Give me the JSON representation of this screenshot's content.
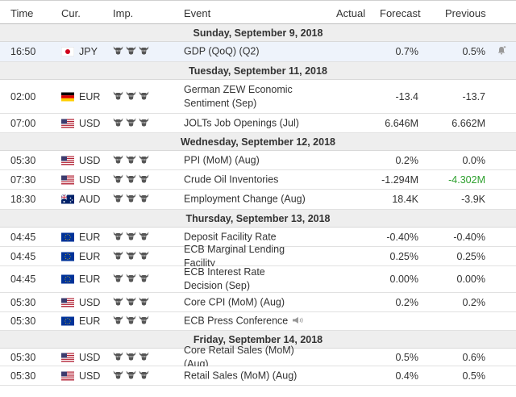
{
  "header": {
    "time": "Time",
    "currency": "Cur.",
    "importance": "Imp.",
    "event": "Event",
    "actual": "Actual",
    "forecast": "Forecast",
    "previous": "Previous"
  },
  "colors": {
    "highlight_row": "#eef3fb",
    "date_row": "#eeeeee",
    "positive": "#2c9f2c"
  },
  "days": [
    {
      "date": "Sunday, September 9, 2018",
      "events": [
        {
          "time": "16:50",
          "flag": "jp-flag-icon",
          "currency": "JPY",
          "event": "GDP (QoQ) (Q2)",
          "actual": "",
          "forecast": "0.7%",
          "previous": "0.5%",
          "bell": "bell-add-icon"
        }
      ]
    },
    {
      "date": "Tuesday, September 11, 2018",
      "events": [
        {
          "time": "02:00",
          "flag": "de-flag-icon",
          "currency": "EUR",
          "event": "German ZEW Economic Sentiment (Sep)",
          "actual": "",
          "forecast": "-13.4",
          "previous": "-13.7"
        },
        {
          "time": "07:00",
          "flag": "us-flag-icon",
          "currency": "USD",
          "event": "JOLTs Job Openings (Jul)",
          "actual": "",
          "forecast": "6.646M",
          "previous": "6.662M"
        }
      ]
    },
    {
      "date": "Wednesday, September 12, 2018",
      "events": [
        {
          "time": "05:30",
          "flag": "us-flag-icon",
          "currency": "USD",
          "event": "PPI (MoM) (Aug)",
          "actual": "",
          "forecast": "0.2%",
          "previous": "0.0%"
        },
        {
          "time": "07:30",
          "flag": "us-flag-icon",
          "currency": "USD",
          "event": "Crude Oil Inventories",
          "actual": "",
          "forecast": "-1.294M",
          "previous": "-4.302M",
          "previous_color": "green"
        },
        {
          "time": "18:30",
          "flag": "au-flag-icon",
          "currency": "AUD",
          "event": "Employment Change (Aug)",
          "actual": "",
          "forecast": "18.4K",
          "previous": "-3.9K"
        }
      ]
    },
    {
      "date": "Thursday, September 13, 2018",
      "events": [
        {
          "time": "04:45",
          "flag": "eu-flag-icon",
          "currency": "EUR",
          "event": "Deposit Facility Rate",
          "actual": "",
          "forecast": "-0.40%",
          "previous": "-0.40%"
        },
        {
          "time": "04:45",
          "flag": "eu-flag-icon",
          "currency": "EUR",
          "event": "ECB Marginal Lending Facility",
          "actual": "",
          "forecast": "0.25%",
          "previous": "0.25%"
        },
        {
          "time": "04:45",
          "flag": "eu-flag-icon",
          "currency": "EUR",
          "event": "ECB Interest Rate Decision (Sep)",
          "actual": "",
          "forecast": "0.00%",
          "previous": "0.00%"
        },
        {
          "time": "05:30",
          "flag": "us-flag-icon",
          "currency": "USD",
          "event": "Core CPI (MoM) (Aug)",
          "actual": "",
          "forecast": "0.2%",
          "previous": "0.2%"
        },
        {
          "time": "05:30",
          "flag": "eu-flag-icon",
          "currency": "EUR",
          "event": "ECB Press Conference",
          "actual": "",
          "forecast": "",
          "previous": "",
          "speaker": "speaker-icon"
        }
      ]
    },
    {
      "date": "Friday, September 14, 2018",
      "events": [
        {
          "time": "05:30",
          "flag": "us-flag-icon",
          "currency": "USD",
          "event": "Core Retail Sales (MoM) (Aug)",
          "actual": "",
          "forecast": "0.5%",
          "previous": "0.6%"
        },
        {
          "time": "05:30",
          "flag": "us-flag-icon",
          "currency": "USD",
          "event": "Retail Sales (MoM) (Aug)",
          "actual": "",
          "forecast": "0.4%",
          "previous": "0.5%"
        }
      ]
    }
  ]
}
